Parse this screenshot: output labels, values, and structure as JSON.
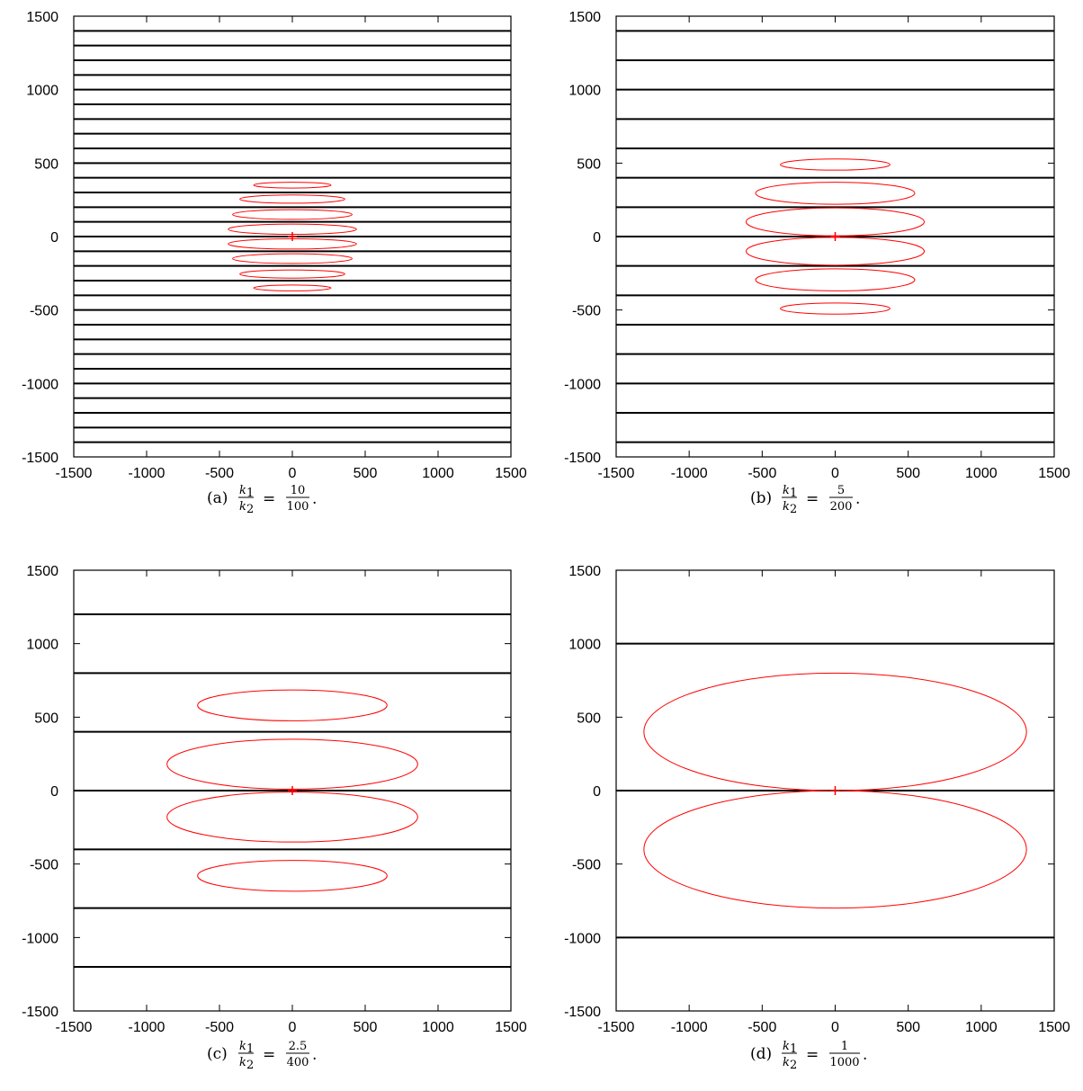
{
  "chart_data": [
    {
      "type": "line",
      "caption": {
        "label": "(a)",
        "lhs_num": "k",
        "lhs_num_sub": "1",
        "lhs_den": "k",
        "lhs_den_sub": "2",
        "eq": "=",
        "rhs_num": "10",
        "rhs_den": "100",
        "tail": "."
      },
      "xlim": [
        -1500,
        1500
      ],
      "ylim": [
        -1500,
        1500
      ],
      "xticks": [
        "-1500",
        "-1000",
        "-500",
        "0",
        "500",
        "1000",
        "1500"
      ],
      "yticks": [
        "-1500",
        "-1000",
        "-500",
        "0",
        "500",
        "1000",
        "1500"
      ],
      "grid": false,
      "horizontal_lines_y": [
        -1400,
        -1300,
        -1200,
        -1100,
        -1000,
        -900,
        -800,
        -700,
        -600,
        -500,
        -400,
        -300,
        -200,
        -100,
        0,
        100,
        200,
        300,
        400,
        500,
        600,
        700,
        800,
        900,
        1000,
        1100,
        1200,
        1300,
        1400
      ],
      "ellipses": [
        {
          "cx": 0,
          "cy": 350,
          "rx": 265,
          "ry": 20
        },
        {
          "cx": 0,
          "cy": 255,
          "rx": 360,
          "ry": 28
        },
        {
          "cx": 0,
          "cy": 150,
          "rx": 410,
          "ry": 33
        },
        {
          "cx": 0,
          "cy": 50,
          "rx": 440,
          "ry": 35
        },
        {
          "cx": 0,
          "cy": -50,
          "rx": 440,
          "ry": 35
        },
        {
          "cx": 0,
          "cy": -150,
          "rx": 410,
          "ry": 33
        },
        {
          "cx": 0,
          "cy": -255,
          "rx": 360,
          "ry": 28
        },
        {
          "cx": 0,
          "cy": -350,
          "rx": 265,
          "ry": 20
        }
      ],
      "source_point": [
        0,
        0
      ],
      "line_color": "#000000",
      "ellipse_color": "#ff0000"
    },
    {
      "type": "line",
      "caption": {
        "label": "(b)",
        "lhs_num": "k",
        "lhs_num_sub": "1",
        "lhs_den": "k",
        "lhs_den_sub": "2",
        "eq": "=",
        "rhs_num": "5",
        "rhs_den": "200",
        "tail": "."
      },
      "xlim": [
        -1500,
        1500
      ],
      "ylim": [
        -1500,
        1500
      ],
      "xticks": [
        "-1500",
        "-1000",
        "-500",
        "0",
        "500",
        "1000",
        "1500"
      ],
      "yticks": [
        "-1500",
        "-1000",
        "-500",
        "0",
        "500",
        "1000",
        "1500"
      ],
      "grid": false,
      "horizontal_lines_y": [
        -1400,
        -1200,
        -1000,
        -800,
        -600,
        -400,
        -200,
        0,
        200,
        400,
        600,
        800,
        1000,
        1200,
        1400
      ],
      "ellipses": [
        {
          "cx": 0,
          "cy": 490,
          "rx": 375,
          "ry": 38
        },
        {
          "cx": 0,
          "cy": 295,
          "rx": 545,
          "ry": 75
        },
        {
          "cx": 0,
          "cy": 100,
          "rx": 610,
          "ry": 95
        },
        {
          "cx": 0,
          "cy": -100,
          "rx": 610,
          "ry": 95
        },
        {
          "cx": 0,
          "cy": -295,
          "rx": 545,
          "ry": 75
        },
        {
          "cx": 0,
          "cy": -490,
          "rx": 375,
          "ry": 38
        }
      ],
      "source_point": [
        0,
        0
      ],
      "line_color": "#000000",
      "ellipse_color": "#ff0000"
    },
    {
      "type": "line",
      "caption": {
        "label": "(c)",
        "lhs_num": "k",
        "lhs_num_sub": "1",
        "lhs_den": "k",
        "lhs_den_sub": "2",
        "eq": "=",
        "rhs_num": "2.5",
        "rhs_den": "400",
        "tail": "."
      },
      "xlim": [
        -1500,
        1500
      ],
      "ylim": [
        -1500,
        1500
      ],
      "xticks": [
        "-1500",
        "-1000",
        "-500",
        "0",
        "500",
        "1000",
        "1500"
      ],
      "yticks": [
        "-1500",
        "-1000",
        "-500",
        "0",
        "500",
        "1000",
        "1500"
      ],
      "grid": false,
      "horizontal_lines_y": [
        -1200,
        -800,
        -400,
        0,
        400,
        800,
        1200
      ],
      "ellipses": [
        {
          "cx": 0,
          "cy": 580,
          "rx": 650,
          "ry": 105
        },
        {
          "cx": 0,
          "cy": 180,
          "rx": 860,
          "ry": 170
        },
        {
          "cx": 0,
          "cy": -180,
          "rx": 860,
          "ry": 170
        },
        {
          "cx": 0,
          "cy": -580,
          "rx": 650,
          "ry": 105
        }
      ],
      "source_point": [
        0,
        0
      ],
      "line_color": "#000000",
      "ellipse_color": "#ff0000"
    },
    {
      "type": "line",
      "caption": {
        "label": "(d)",
        "lhs_num": "k",
        "lhs_num_sub": "1",
        "lhs_den": "k",
        "lhs_den_sub": "2",
        "eq": "=",
        "rhs_num": "1",
        "rhs_den": "1000",
        "tail": "."
      },
      "xlim": [
        -1500,
        1500
      ],
      "ylim": [
        -1500,
        1500
      ],
      "xticks": [
        "-1500",
        "-1000",
        "-500",
        "0",
        "500",
        "1000",
        "1500"
      ],
      "yticks": [
        "-1500",
        "-1000",
        "-500",
        "0",
        "500",
        "1000",
        "1500"
      ],
      "grid": false,
      "horizontal_lines_y": [
        -1000,
        0,
        1000
      ],
      "ellipses": [
        {
          "cx": 0,
          "cy": 400,
          "rx": 1310,
          "ry": 400
        },
        {
          "cx": 0,
          "cy": -400,
          "rx": 1310,
          "ry": 400
        }
      ],
      "source_point": [
        0,
        0
      ],
      "line_color": "#000000",
      "ellipse_color": "#ff0000"
    }
  ]
}
